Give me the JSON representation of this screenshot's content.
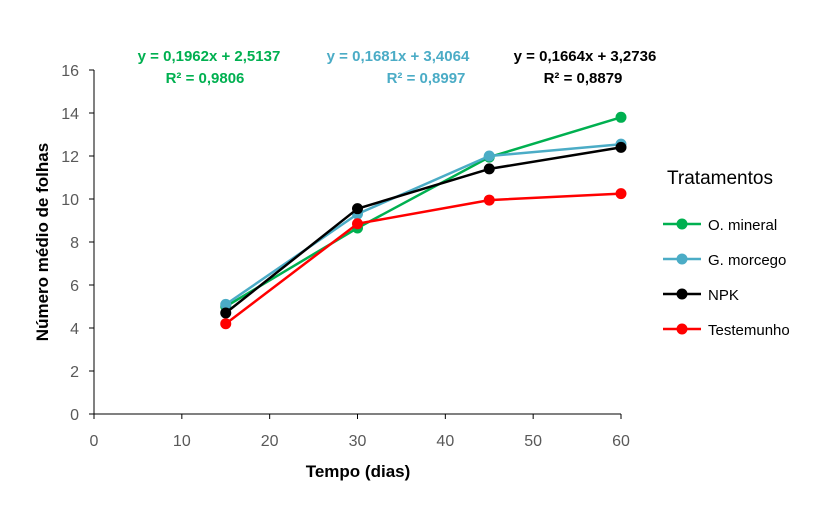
{
  "chart_data": {
    "type": "line",
    "xlabel": "Tempo (dias)",
    "ylabel": "Número médio de folhas",
    "xlim": [
      0,
      60
    ],
    "ylim": [
      0,
      16
    ],
    "xticks": [
      "0",
      "10",
      "20",
      "30",
      "40",
      "50",
      "60"
    ],
    "yticks": [
      "0",
      "2",
      "4",
      "6",
      "8",
      "10",
      "12",
      "14",
      "16"
    ],
    "x": [
      15,
      30,
      45,
      60
    ],
    "grid": false,
    "legend": {
      "title": "Tratamentos",
      "placement": "right"
    },
    "series": [
      {
        "name": "O. mineral",
        "color": "#00B050",
        "values": [
          5.0,
          8.65,
          11.95,
          13.8
        ]
      },
      {
        "name": "G. morcego",
        "color": "#4BACC6",
        "values": [
          5.1,
          9.3,
          12.0,
          12.55
        ]
      },
      {
        "name": "NPK",
        "color": "#000000",
        "values": [
          4.7,
          9.55,
          11.4,
          12.4
        ]
      },
      {
        "name": "Testemunho",
        "color": "#FF0000",
        "values": [
          4.2,
          8.85,
          9.95,
          10.25
        ]
      }
    ],
    "annotations": [
      {
        "equation": "y = 0,1962x + 2,5137",
        "r2": "R² = 0,9806",
        "color": "#00B050"
      },
      {
        "equation": "y = 0,1681x + 3,4064",
        "r2": "R² = 0,8997",
        "color": "#4BACC6"
      },
      {
        "equation": "y = 0,1664x + 3,2736",
        "r2": "R² = 0,8879",
        "color": "#000000"
      }
    ]
  }
}
